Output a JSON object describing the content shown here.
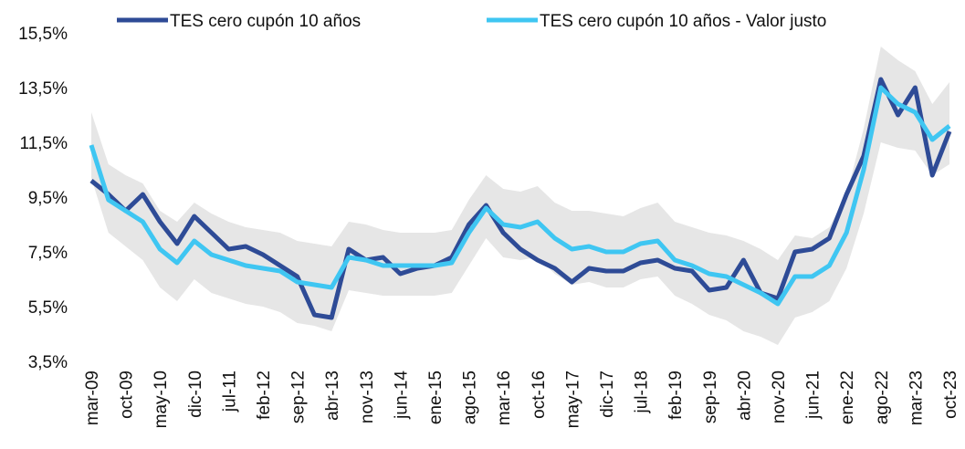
{
  "chart_data": {
    "type": "line",
    "categories": [
      "mar-09",
      null,
      "oct-09",
      null,
      "may-10",
      null,
      "dic-10",
      null,
      "jul-11",
      null,
      "feb-12",
      null,
      "sep-12",
      null,
      "abr-13",
      null,
      "nov-13",
      null,
      "jun-14",
      null,
      "ene-15",
      null,
      "ago-15",
      null,
      "mar-16",
      null,
      "oct-16",
      null,
      "may-17",
      null,
      "dic-17",
      null,
      "jul-18",
      null,
      "feb-19",
      null,
      "sep-19",
      null,
      "abr-20",
      null,
      "nov-20",
      null,
      "jun-21",
      null,
      "ene-22",
      null,
      "ago-22",
      null,
      "mar-23",
      null,
      "oct-23"
    ],
    "series": [
      {
        "name": "TES cero cupón 10 años",
        "color": "#2e4b96",
        "values": [
          10.1,
          9.6,
          9.0,
          9.6,
          8.6,
          7.8,
          8.8,
          8.2,
          7.6,
          7.7,
          7.4,
          7.0,
          6.6,
          5.2,
          5.1,
          7.6,
          7.2,
          7.3,
          6.7,
          6.9,
          7.0,
          7.3,
          8.5,
          9.2,
          8.2,
          7.6,
          7.2,
          6.9,
          6.4,
          6.9,
          6.8,
          6.8,
          7.1,
          7.2,
          6.9,
          6.8,
          6.1,
          6.2,
          7.2,
          6.0,
          5.8,
          7.5,
          7.6,
          8.0,
          9.6,
          11.0,
          13.8,
          12.5,
          13.5,
          10.3,
          11.9
        ]
      },
      {
        "name": "TES cero cupón 10 años - Valor justo",
        "color": "#3fc6f2",
        "values": [
          11.4,
          9.4,
          9.0,
          8.6,
          7.6,
          7.1,
          7.9,
          7.4,
          7.2,
          7.0,
          6.9,
          6.8,
          6.4,
          6.3,
          6.2,
          7.3,
          7.2,
          7.0,
          7.0,
          7.0,
          7.0,
          7.1,
          8.2,
          9.1,
          8.5,
          8.4,
          8.6,
          8.0,
          7.6,
          7.7,
          7.5,
          7.5,
          7.8,
          7.9,
          7.2,
          7.0,
          6.7,
          6.6,
          6.3,
          6.0,
          5.6,
          6.6,
          6.6,
          7.0,
          8.2,
          10.5,
          13.5,
          12.9,
          12.6,
          11.6,
          12.1
        ]
      }
    ],
    "band": {
      "color": "#e6e6e6",
      "low": [
        10.2,
        8.2,
        7.7,
        7.2,
        6.2,
        5.7,
        6.5,
        6.0,
        5.8,
        5.6,
        5.5,
        5.3,
        4.9,
        4.8,
        4.6,
        6.1,
        6.0,
        5.9,
        5.9,
        5.9,
        5.9,
        6.0,
        7.0,
        8.0,
        7.3,
        7.2,
        7.3,
        6.7,
        6.3,
        6.4,
        6.2,
        6.2,
        6.5,
        6.6,
        5.9,
        5.6,
        5.2,
        5.0,
        4.6,
        4.4,
        4.1,
        5.1,
        5.3,
        5.7,
        6.9,
        8.9,
        11.5,
        11.3,
        11.2,
        10.3,
        10.7
      ],
      "high": [
        12.6,
        10.7,
        10.3,
        10.0,
        9.0,
        8.6,
        9.3,
        8.9,
        8.6,
        8.4,
        8.3,
        8.2,
        7.9,
        7.8,
        7.7,
        8.6,
        8.5,
        8.3,
        8.2,
        8.2,
        8.2,
        8.3,
        9.4,
        10.3,
        9.8,
        9.7,
        9.9,
        9.3,
        9.0,
        9.0,
        8.9,
        8.8,
        9.1,
        9.3,
        8.6,
        8.4,
        8.2,
        8.1,
        7.9,
        7.6,
        7.2,
        8.1,
        8.0,
        8.4,
        9.6,
        12.0,
        15.0,
        14.5,
        14.1,
        12.9,
        13.7
      ]
    },
    "ylim": [
      3.5,
      15.5
    ],
    "yticks": [
      {
        "value": 3.5,
        "label": "3,5%"
      },
      {
        "value": 5.5,
        "label": "5,5%"
      },
      {
        "value": 7.5,
        "label": "7,5%"
      },
      {
        "value": 9.5,
        "label": "9,5%"
      },
      {
        "value": 11.5,
        "label": "11,5%"
      },
      {
        "value": 13.5,
        "label": "13,5%"
      },
      {
        "value": 15.5,
        "label": "15,5%"
      }
    ]
  }
}
